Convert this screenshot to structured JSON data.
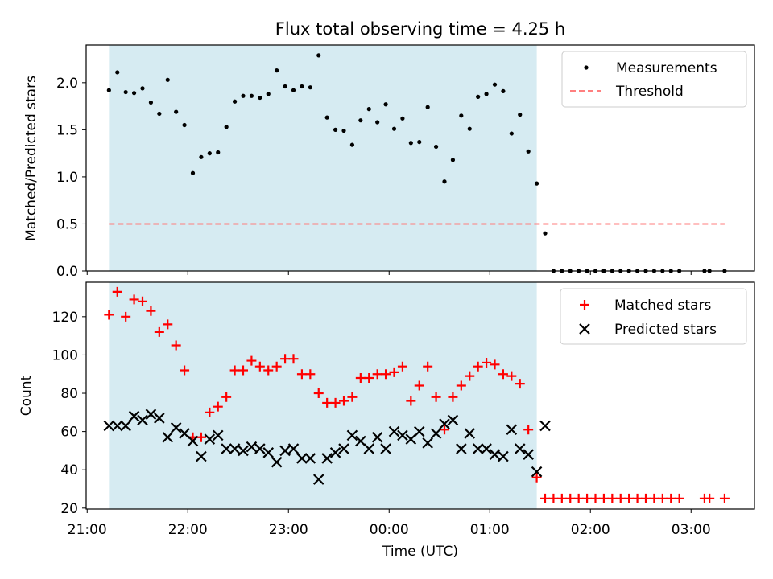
{
  "figure": {
    "title": "Flux total observing time = 4.25 h"
  },
  "colors": {
    "shade": "#add8e6",
    "matched": "#ff0000",
    "predicted": "#000000",
    "measurement": "#000000",
    "threshold": "#ff7f7f"
  },
  "chart_data": [
    {
      "type": "scatter",
      "ylabel": "Matched/Predicted stars",
      "xlabel": "",
      "ylim": [
        0,
        2.4
      ],
      "yticks": [
        0.0,
        0.5,
        1.0,
        1.5,
        2.0
      ],
      "ytick_labels": [
        "0.0",
        "0.5",
        "1.0",
        "1.5",
        "2.0"
      ],
      "xlim_hours": [
        20.99,
        27.63
      ],
      "legend_position": "upper right",
      "shaded_interval": [
        "21:13",
        "01:28"
      ],
      "threshold": 0.5,
      "threshold_span": [
        "21:13",
        "03:20"
      ],
      "series": [
        {
          "name": "Measurements",
          "marker": "dot",
          "points": [
            [
              "21:13",
              1.92
            ],
            [
              "21:18",
              2.11
            ],
            [
              "21:23",
              1.9
            ],
            [
              "21:28",
              1.89
            ],
            [
              "21:33",
              1.94
            ],
            [
              "21:38",
              1.79
            ],
            [
              "21:43",
              1.67
            ],
            [
              "21:48",
              2.03
            ],
            [
              "21:53",
              1.69
            ],
            [
              "21:58",
              1.55
            ],
            [
              "22:03",
              1.04
            ],
            [
              "22:08",
              1.21
            ],
            [
              "22:13",
              1.25
            ],
            [
              "22:18",
              1.26
            ],
            [
              "22:23",
              1.53
            ],
            [
              "22:28",
              1.8
            ],
            [
              "22:33",
              1.86
            ],
            [
              "22:38",
              1.86
            ],
            [
              "22:43",
              1.84
            ],
            [
              "22:48",
              1.88
            ],
            [
              "22:53",
              2.13
            ],
            [
              "22:58",
              1.96
            ],
            [
              "23:03",
              1.92
            ],
            [
              "23:08",
              1.96
            ],
            [
              "23:13",
              1.95
            ],
            [
              "23:18",
              2.29
            ],
            [
              "23:23",
              1.63
            ],
            [
              "23:28",
              1.5
            ],
            [
              "23:33",
              1.49
            ],
            [
              "23:38",
              1.34
            ],
            [
              "23:43",
              1.6
            ],
            [
              "23:48",
              1.72
            ],
            [
              "23:53",
              1.58
            ],
            [
              "23:58",
              1.77
            ],
            [
              "00:03",
              1.51
            ],
            [
              "00:08",
              1.62
            ],
            [
              "00:13",
              1.36
            ],
            [
              "00:18",
              1.37
            ],
            [
              "00:23",
              1.74
            ],
            [
              "00:28",
              1.32
            ],
            [
              "00:33",
              0.95
            ],
            [
              "00:38",
              1.18
            ],
            [
              "00:43",
              1.65
            ],
            [
              "00:48",
              1.51
            ],
            [
              "00:53",
              1.85
            ],
            [
              "00:58",
              1.88
            ],
            [
              "01:03",
              1.98
            ],
            [
              "01:08",
              1.91
            ],
            [
              "01:13",
              1.46
            ],
            [
              "01:18",
              1.66
            ],
            [
              "01:23",
              1.27
            ],
            [
              "01:28",
              0.93
            ],
            [
              "01:33",
              0.4
            ],
            [
              "01:38",
              0.0
            ],
            [
              "01:43",
              0.0
            ],
            [
              "01:48",
              0.0
            ],
            [
              "01:53",
              0.0
            ],
            [
              "01:58",
              0.0
            ],
            [
              "02:03",
              0.0
            ],
            [
              "02:08",
              0.0
            ],
            [
              "02:13",
              0.0
            ],
            [
              "02:18",
              0.0
            ],
            [
              "02:23",
              0.0
            ],
            [
              "02:28",
              0.0
            ],
            [
              "02:33",
              0.0
            ],
            [
              "02:38",
              0.0
            ],
            [
              "02:43",
              0.0
            ],
            [
              "02:48",
              0.0
            ],
            [
              "02:53",
              0.0
            ],
            [
              "03:08",
              0.0
            ],
            [
              "03:11",
              0.0
            ],
            [
              "03:20",
              0.0
            ]
          ]
        },
        {
          "name": "Threshold",
          "style": "dashed",
          "value": 0.5
        }
      ]
    },
    {
      "type": "scatter",
      "ylabel": "Count",
      "xlabel": "Time (UTC)",
      "ylim": [
        19.5,
        138
      ],
      "yticks": [
        20,
        40,
        60,
        80,
        100,
        120
      ],
      "ytick_labels": [
        "20",
        "40",
        "60",
        "80",
        "100",
        "120"
      ],
      "xticks": [
        "21:00",
        "22:00",
        "23:00",
        "00:00",
        "01:00",
        "02:00",
        "03:00"
      ],
      "xlim_hours": [
        20.99,
        27.63
      ],
      "legend_position": "upper right",
      "shaded_interval": [
        "21:13",
        "01:28"
      ],
      "series": [
        {
          "name": "Matched stars",
          "marker": "plus",
          "points": [
            [
              "21:13",
              121
            ],
            [
              "21:18",
              133
            ],
            [
              "21:23",
              120
            ],
            [
              "21:28",
              129
            ],
            [
              "21:33",
              128
            ],
            [
              "21:38",
              123
            ],
            [
              "21:43",
              112
            ],
            [
              "21:48",
              116
            ],
            [
              "21:53",
              105
            ],
            [
              "21:58",
              92
            ],
            [
              "22:03",
              57
            ],
            [
              "22:08",
              57
            ],
            [
              "22:13",
              70
            ],
            [
              "22:18",
              73
            ],
            [
              "22:23",
              78
            ],
            [
              "22:28",
              92
            ],
            [
              "22:33",
              92
            ],
            [
              "22:38",
              97
            ],
            [
              "22:43",
              94
            ],
            [
              "22:48",
              92
            ],
            [
              "22:53",
              94
            ],
            [
              "22:58",
              98
            ],
            [
              "23:03",
              98
            ],
            [
              "23:08",
              90
            ],
            [
              "23:13",
              90
            ],
            [
              "23:18",
              80
            ],
            [
              "23:23",
              75
            ],
            [
              "23:28",
              75
            ],
            [
              "23:33",
              76
            ],
            [
              "23:38",
              78
            ],
            [
              "23:43",
              88
            ],
            [
              "23:48",
              88
            ],
            [
              "23:53",
              90
            ],
            [
              "23:58",
              90
            ],
            [
              "00:03",
              91
            ],
            [
              "00:08",
              94
            ],
            [
              "00:13",
              76
            ],
            [
              "00:18",
              84
            ],
            [
              "00:23",
              94
            ],
            [
              "00:28",
              78
            ],
            [
              "00:33",
              61
            ],
            [
              "00:38",
              78
            ],
            [
              "00:43",
              84
            ],
            [
              "00:48",
              89
            ],
            [
              "00:53",
              94
            ],
            [
              "00:58",
              96
            ],
            [
              "01:03",
              95
            ],
            [
              "01:08",
              90
            ],
            [
              "01:13",
              89
            ],
            [
              "01:18",
              85
            ],
            [
              "01:23",
              61
            ],
            [
              "01:28",
              36
            ],
            [
              "01:33",
              25
            ],
            [
              "01:38",
              25
            ],
            [
              "01:43",
              25
            ],
            [
              "01:48",
              25
            ],
            [
              "01:53",
              25
            ],
            [
              "01:58",
              25
            ],
            [
              "02:03",
              25
            ],
            [
              "02:08",
              25
            ],
            [
              "02:13",
              25
            ],
            [
              "02:18",
              25
            ],
            [
              "02:23",
              25
            ],
            [
              "02:28",
              25
            ],
            [
              "02:33",
              25
            ],
            [
              "02:38",
              25
            ],
            [
              "02:43",
              25
            ],
            [
              "02:48",
              25
            ],
            [
              "02:53",
              25
            ],
            [
              "03:08",
              25
            ],
            [
              "03:11",
              25
            ],
            [
              "03:20",
              25
            ]
          ]
        },
        {
          "name": "Predicted stars",
          "marker": "x",
          "points": [
            [
              "21:13",
              63
            ],
            [
              "21:18",
              63
            ],
            [
              "21:23",
              63
            ],
            [
              "21:28",
              68
            ],
            [
              "21:33",
              66
            ],
            [
              "21:38",
              69
            ],
            [
              "21:43",
              67
            ],
            [
              "21:48",
              57
            ],
            [
              "21:53",
              62
            ],
            [
              "21:58",
              59
            ],
            [
              "22:03",
              55
            ],
            [
              "22:08",
              47
            ],
            [
              "22:13",
              56
            ],
            [
              "22:18",
              58
            ],
            [
              "22:23",
              51
            ],
            [
              "22:28",
              51
            ],
            [
              "22:33",
              50
            ],
            [
              "22:38",
              52
            ],
            [
              "22:43",
              51
            ],
            [
              "22:48",
              49
            ],
            [
              "22:53",
              44
            ],
            [
              "22:58",
              50
            ],
            [
              "23:03",
              51
            ],
            [
              "23:08",
              46
            ],
            [
              "23:13",
              46
            ],
            [
              "23:18",
              35
            ],
            [
              "23:23",
              46
            ],
            [
              "23:28",
              49
            ],
            [
              "23:33",
              51
            ],
            [
              "23:38",
              58
            ],
            [
              "23:43",
              55
            ],
            [
              "23:48",
              51
            ],
            [
              "23:53",
              57
            ],
            [
              "23:58",
              51
            ],
            [
              "00:03",
              60
            ],
            [
              "00:08",
              58
            ],
            [
              "00:13",
              56
            ],
            [
              "00:18",
              60
            ],
            [
              "00:23",
              54
            ],
            [
              "00:28",
              59
            ],
            [
              "00:33",
              64
            ],
            [
              "00:38",
              66
            ],
            [
              "00:43",
              51
            ],
            [
              "00:48",
              59
            ],
            [
              "00:53",
              51
            ],
            [
              "00:58",
              51
            ],
            [
              "01:03",
              48
            ],
            [
              "01:08",
              47
            ],
            [
              "01:13",
              61
            ],
            [
              "01:18",
              51
            ],
            [
              "01:23",
              48
            ],
            [
              "01:28",
              39
            ],
            [
              "01:33",
              63
            ]
          ]
        }
      ]
    }
  ]
}
